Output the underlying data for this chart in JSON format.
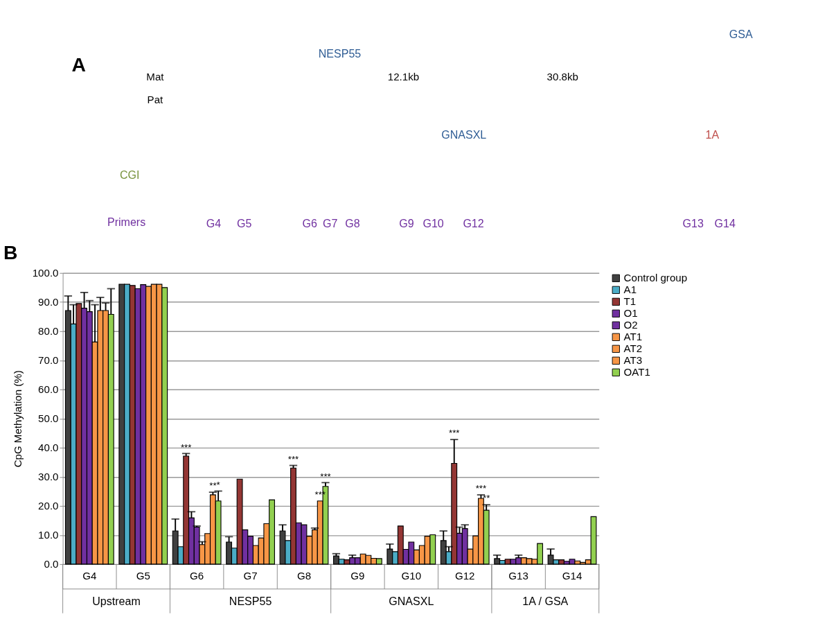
{
  "chart_data": [
    {
      "type": "other",
      "annotations": [
        "A",
        "Mat",
        "Pat",
        "NESP55",
        "12.1kb",
        "GNASXL",
        "30.8kb",
        "1A",
        "GSA",
        "CGI",
        "Primers",
        "G4",
        "G5",
        "G6",
        "G7",
        "G8",
        "G9",
        "G10",
        "G12",
        "G13",
        "G14"
      ]
    },
    {
      "type": "bar",
      "ylabel": "CpG Methylation (%)",
      "annotations": [
        "B",
        "Upstream",
        "NESP55",
        "GNASXL",
        "1A / GSA"
      ],
      "categories": [
        "G4",
        "G5",
        "G6",
        "G7",
        "G8",
        "G9",
        "G10",
        "G12",
        "G13",
        "G14"
      ],
      "ylim": [
        0,
        100
      ],
      "yticks": [
        {
          "value": 0,
          "label": "0.0"
        },
        {
          "value": 10,
          "label": "10.0"
        },
        {
          "value": 20,
          "label": "20.0"
        },
        {
          "value": 30,
          "label": "30.0"
        },
        {
          "value": 40,
          "label": "40.0"
        },
        {
          "value": 50,
          "label": "50.0"
        },
        {
          "value": 60,
          "label": "60.0"
        },
        {
          "value": 70,
          "label": "70.0"
        },
        {
          "value": 80,
          "label": "80.0"
        },
        {
          "value": 90,
          "label": "90.0"
        },
        {
          "value": 100,
          "label": "100.0"
        }
      ],
      "grid": "y",
      "legend": "right",
      "series": [
        {
          "name": "Control group",
          "color": "#404040",
          "values": [
            87.1,
            96.1,
            11.4,
            7.6,
            11.4,
            2.8,
            5.2,
            8.1,
            1.9,
            3.1
          ],
          "errors": [
            [
              87.1,
              92.1
            ],
            null,
            [
              11.4,
              15.5
            ],
            [
              7.6,
              9.4
            ],
            [
              11.4,
              13.5
            ],
            [
              2.8,
              3.6
            ],
            [
              5.2,
              6.9
            ],
            [
              8.1,
              11.4
            ],
            [
              1.9,
              3.1
            ],
            [
              3.1,
              5.2
            ]
          ]
        },
        {
          "name": "A1",
          "color": "#4bacc6",
          "values": [
            82.5,
            96.1,
            6.0,
            5.5,
            8.1,
            1.7,
            4.3,
            4.3,
            1.3,
            1.5
          ],
          "errors": [
            [
              82.5,
              89.1
            ],
            null,
            null,
            null,
            null,
            null,
            null,
            [
              4.3,
              6.0
            ],
            null,
            null
          ]
        },
        {
          "name": "T1",
          "color": "#943634",
          "values": [
            89.5,
            95.7,
            37.1,
            29.2,
            33.0,
            1.5,
            13.1,
            34.6,
            1.7,
            1.5
          ],
          "errors": [
            null,
            null,
            [
              37.1,
              38.0
            ],
            null,
            [
              33.0,
              33.9
            ],
            null,
            null,
            [
              34.6,
              42.8
            ],
            null,
            null
          ],
          "value_labels": [
            null,
            null,
            "***",
            null,
            "***",
            null,
            null,
            "***",
            null,
            null
          ]
        },
        {
          "name": "O1",
          "color": "#7030a0",
          "values": [
            87.9,
            94.6,
            15.9,
            11.8,
            14.2,
            2.2,
            5.1,
            10.6,
            1.7,
            1.0
          ],
          "errors": [
            [
              87.9,
              93.3
            ],
            null,
            [
              15.9,
              18.0
            ],
            null,
            null,
            [
              2.2,
              3.1
            ],
            null,
            [
              10.6,
              12.7
            ],
            null,
            null
          ]
        },
        {
          "name": "O2",
          "color": "#7030a0",
          "values": [
            86.7,
            96.0,
            12.7,
            9.6,
            13.5,
            2.2,
            7.6,
            12.2,
            2.2,
            1.7
          ],
          "errors": [
            [
              86.7,
              90.5
            ],
            null,
            [
              12.7,
              13.1
            ],
            null,
            null,
            null,
            null,
            [
              12.2,
              13.5
            ],
            [
              2.2,
              3.1
            ],
            null
          ]
        },
        {
          "name": "AT1",
          "color": "#f79646",
          "values": [
            76.3,
            95.4,
            6.7,
            6.4,
            9.6,
            3.5,
            4.9,
            5.2,
            2.2,
            1.1
          ],
          "errors": [
            [
              76.3,
              89.1
            ],
            null,
            [
              6.7,
              7.7
            ],
            null,
            null,
            null,
            null,
            null,
            null,
            null
          ]
        },
        {
          "name": "AT2",
          "color": "#f79646",
          "values": [
            87.1,
            96.1,
            10.5,
            9.0,
            11.8,
            3.0,
            6.4,
            9.7,
            1.9,
            0.6
          ],
          "errors": [
            [
              87.1,
              91.6
            ],
            null,
            null,
            null,
            [
              11.8,
              12.4
            ],
            null,
            null,
            null,
            null,
            null
          ]
        },
        {
          "name": "AT3",
          "color": "#f79646",
          "values": [
            87.1,
            96.1,
            23.8,
            13.9,
            21.7,
            2.0,
            9.6,
            22.6,
            1.7,
            1.5
          ],
          "errors": [
            [
              87.1,
              89.7
            ],
            null,
            [
              23.8,
              24.7
            ],
            null,
            null,
            null,
            null,
            [
              22.6,
              23.8
            ],
            null,
            null
          ],
          "value_labels": [
            null,
            null,
            "**",
            null,
            "***",
            null,
            null,
            "***",
            null,
            null
          ]
        },
        {
          "name": "OAT1",
          "color": "#92d050",
          "values": [
            85.8,
            95.0,
            21.7,
            22.1,
            26.7,
            1.9,
            10.1,
            18.5,
            7.1,
            16.3
          ],
          "errors": [
            [
              85.8,
              94.6
            ],
            null,
            [
              21.7,
              25.1
            ],
            null,
            [
              26.7,
              28.0
            ],
            null,
            null,
            [
              18.5,
              20.4
            ],
            null,
            null
          ],
          "value_labels": [
            null,
            null,
            "*",
            null,
            "***",
            null,
            null,
            "**",
            null,
            null
          ]
        }
      ]
    }
  ]
}
